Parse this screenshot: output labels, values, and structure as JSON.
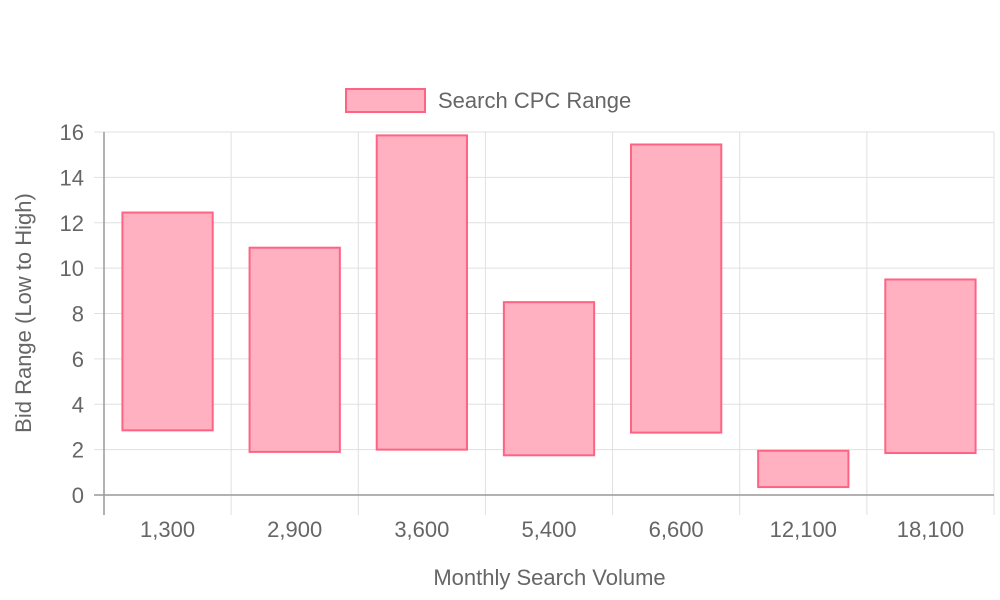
{
  "chart_data": {
    "type": "bar",
    "subtype": "floating-range",
    "categories": [
      "1,300",
      "2,900",
      "3,600",
      "5,400",
      "6,600",
      "12,100",
      "18,100"
    ],
    "series": [
      {
        "name": "Search CPC Range",
        "ranges": [
          [
            2.85,
            12.45
          ],
          [
            1.9,
            10.9
          ],
          [
            2.0,
            15.85
          ],
          [
            1.75,
            8.5
          ],
          [
            2.75,
            15.45
          ],
          [
            0.35,
            1.95
          ],
          [
            1.85,
            9.5
          ]
        ]
      }
    ],
    "ylim": [
      0,
      16
    ],
    "yticks": [
      0,
      2,
      4,
      6,
      8,
      10,
      12,
      14,
      16
    ],
    "xlabel": "Monthly Search Volume",
    "ylabel": "Bid Range (Low to High)",
    "grid": true,
    "legend_position": "top-center",
    "colors": {
      "bar_fill": "#ffb1c1",
      "bar_border": "#ff6384",
      "grid": "#e0e0e0",
      "axis": "#999999",
      "text": "#666666"
    }
  }
}
